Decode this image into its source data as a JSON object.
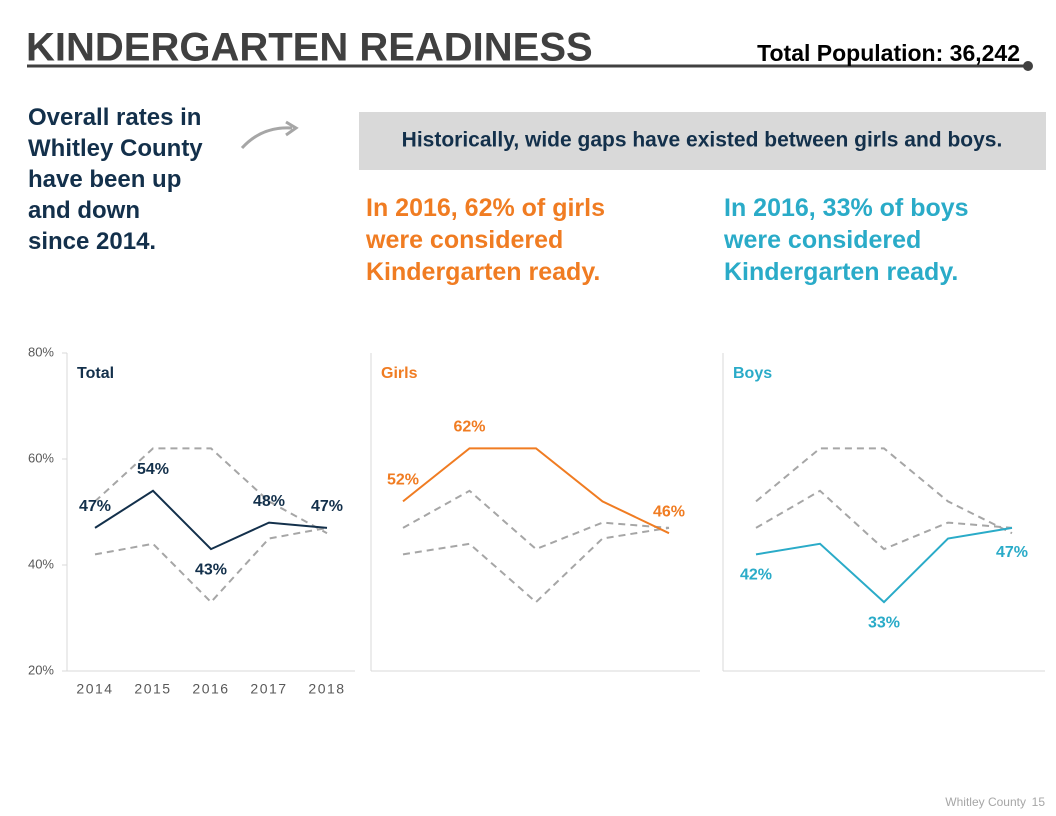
{
  "header": {
    "title": "KINDERGARTEN READINESS",
    "population": "Total Population: 36,242"
  },
  "intro": "Overall rates in Whitley County have been up and down since 2014.",
  "banner": "Historically, wide gaps have existed between girls and boys.",
  "girls_note": "In 2016, 62% of girls were considered Kindergarten ready.",
  "boys_note": "In 2016, 33% of boys were considered Kindergarten ready.",
  "footer": {
    "source": "Whitley County",
    "page": "15"
  },
  "chart_data": [
    {
      "type": "line",
      "title": "Total",
      "color": "#13304b",
      "categories": [
        "2014",
        "2015",
        "2016",
        "2017",
        "2018"
      ],
      "values": [
        47,
        54,
        43,
        48,
        47
      ],
      "value_labels": [
        "47%",
        "54%",
        "43%",
        "48%",
        "47%"
      ],
      "ylim": [
        20,
        80
      ],
      "yticks": [
        {
          "value": 20,
          "label": "20%"
        },
        {
          "value": 40,
          "label": "40%"
        },
        {
          "value": 60,
          "label": "60%"
        },
        {
          "value": 80,
          "label": "80%"
        }
      ]
    },
    {
      "type": "line",
      "title": "Girls",
      "color": "#f07c22",
      "values": [
        52,
        62,
        62,
        52,
        46
      ],
      "value_labels": [
        "52%",
        "62%",
        null,
        null,
        "46%"
      ]
    },
    {
      "type": "line",
      "title": "Boys",
      "color": "#2aabc8",
      "values": [
        42,
        44,
        33,
        45,
        47
      ],
      "value_labels": [
        "42%",
        null,
        "33%",
        null,
        "47%"
      ]
    }
  ]
}
